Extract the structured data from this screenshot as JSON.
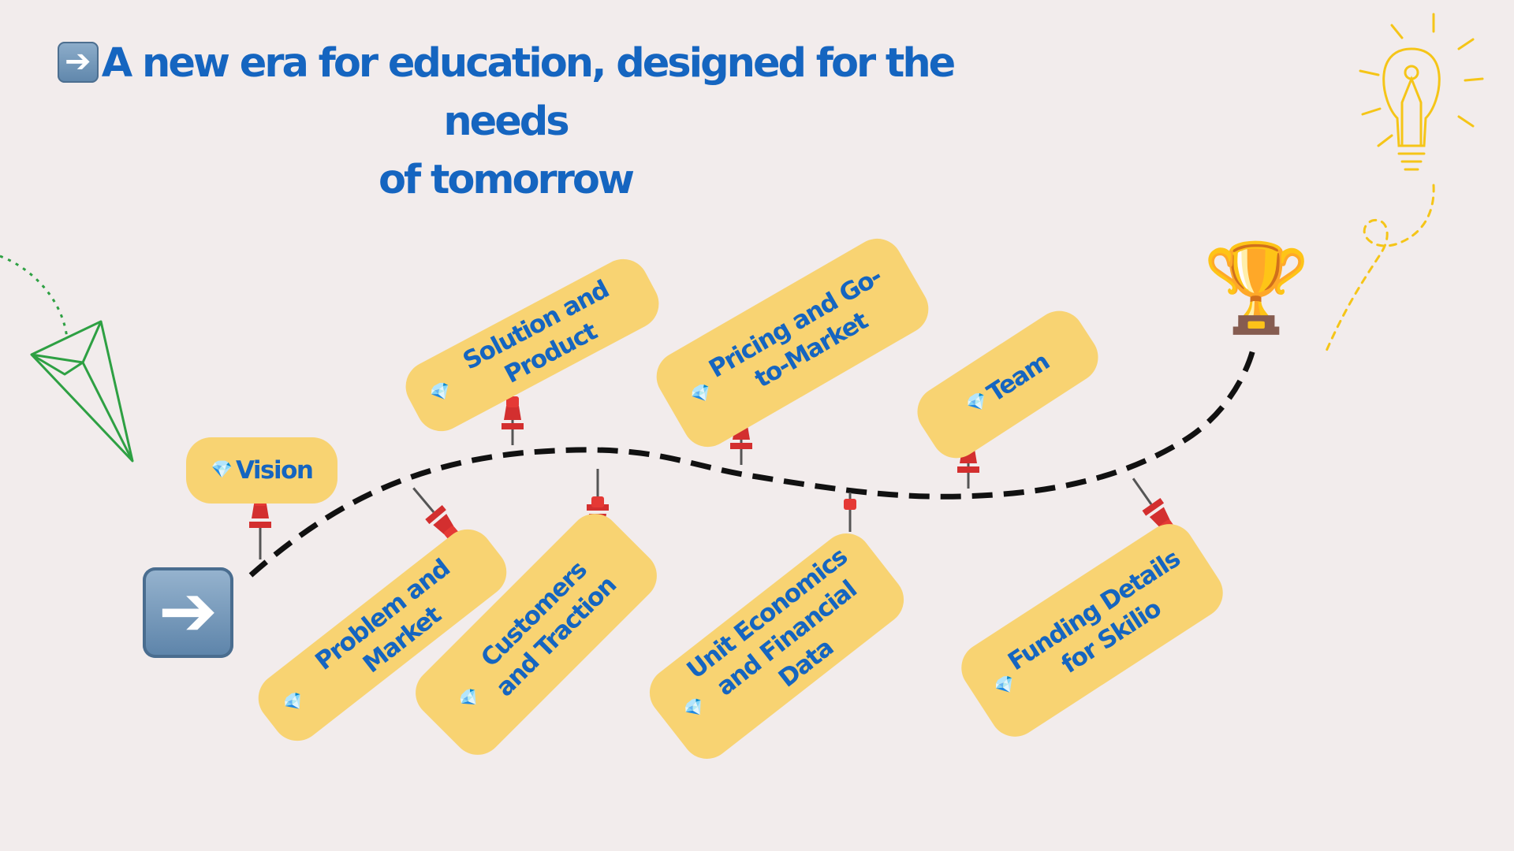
{
  "title": {
    "icon": "right-arrow-icon",
    "line1": "A new era for education, designed for the needs",
    "line2": "of tomorrow"
  },
  "roadmap": {
    "start_icon": "right-arrow-icon",
    "end_icon": "trophy-icon",
    "pin_icon": "pushpin-icon",
    "gem_icon": "gem-icon",
    "labels": [
      {
        "id": "vision",
        "text": "Vision"
      },
      {
        "id": "problem",
        "text": "Problem and Market"
      },
      {
        "id": "solution",
        "text": "Solution and Product"
      },
      {
        "id": "customers",
        "text": "Customers and Traction"
      },
      {
        "id": "pricing",
        "text": "Pricing and Go-to-Market"
      },
      {
        "id": "unit",
        "text": "Unit Economics and Financial Data"
      },
      {
        "id": "team",
        "text": "Team"
      },
      {
        "id": "funding",
        "text": "Funding Details for Skilio"
      }
    ]
  },
  "colors": {
    "background": "#f2ecec",
    "title": "#1565c0",
    "label_bg": "#f8d372",
    "path": "#111111",
    "pin": "#d32f2f",
    "plane": "#2ea043",
    "bulb": "#f5c518"
  }
}
